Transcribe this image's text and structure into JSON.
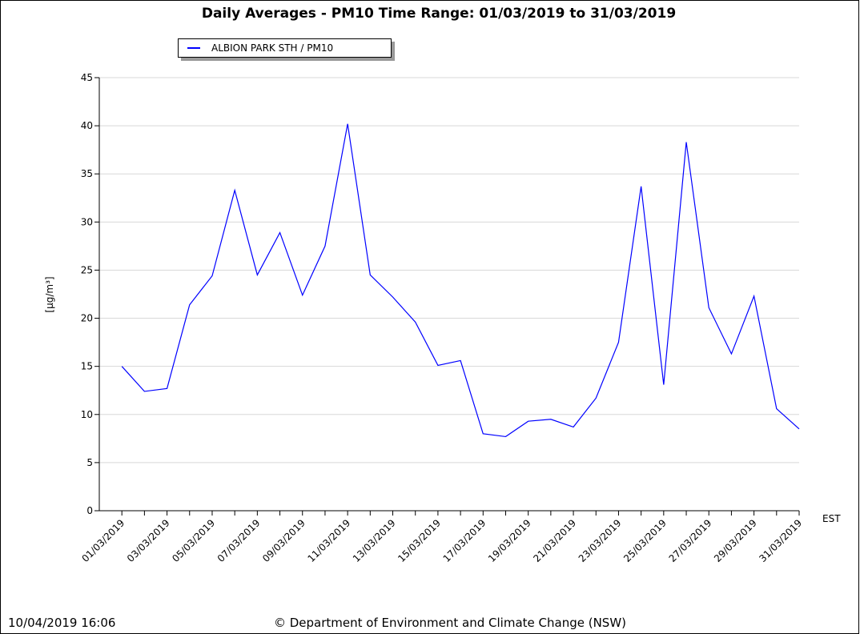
{
  "chart_data": {
    "type": "line",
    "title": "Daily Averages - PM10 Time Range: 01/03/2019 to 31/03/2019",
    "y_label": "[µg/m³]",
    "x_label": "EST",
    "timestamp": "10/04/2019 16:06",
    "footer": "© Department of Environment and Climate Change (NSW)",
    "categories": [
      "01/03/2019",
      null,
      "03/03/2019",
      null,
      "05/03/2019",
      null,
      "07/03/2019",
      null,
      "09/03/2019",
      null,
      "11/03/2019",
      null,
      "13/03/2019",
      null,
      "15/03/2019",
      null,
      "17/03/2019",
      null,
      "19/03/2019",
      null,
      "21/03/2019",
      null,
      "23/03/2019",
      null,
      "25/03/2019",
      null,
      "27/03/2019",
      null,
      "29/03/2019",
      null,
      "31/03/2019"
    ],
    "series": [
      {
        "name": "ALBION PARK STH / PM10",
        "color": "#0000ff",
        "values": [
          15.0,
          12.4,
          12.7,
          21.4,
          24.4,
          33.3,
          24.5,
          28.9,
          22.4,
          27.5,
          40.2,
          24.5,
          22.2,
          19.6,
          15.1,
          15.6,
          8.0,
          7.7,
          9.3,
          9.5,
          8.7,
          11.7,
          17.5,
          33.7,
          13.1,
          38.3,
          21.1,
          16.3,
          22.3,
          10.6,
          8.5
        ]
      }
    ],
    "ylim": [
      0,
      45
    ],
    "yticks": [
      0,
      5,
      10,
      15,
      20,
      25,
      30,
      35,
      40,
      45
    ],
    "grid": true
  }
}
